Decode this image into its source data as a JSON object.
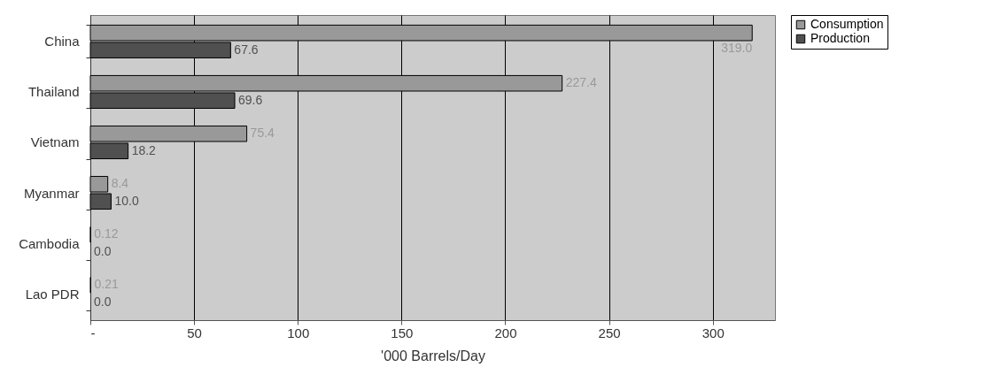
{
  "chart_data": {
    "type": "bar",
    "orientation": "horizontal",
    "xlabel": "'000 Barrels/Day",
    "categories": [
      "China",
      "Thailand",
      "Vietnam",
      "Myanmar",
      "Cambodia",
      "Lao PDR"
    ],
    "series": [
      {
        "name": "Consumption",
        "color": "#999999",
        "values": [
          319.0,
          227.4,
          75.4,
          8.4,
          0.12,
          0.21
        ],
        "value_labels": [
          "319.0",
          "227.4",
          "75.4",
          "8.4",
          "0.12",
          "0.21"
        ]
      },
      {
        "name": "Production",
        "color": "#505050",
        "values": [
          67.6,
          69.6,
          18.2,
          10.0,
          0.0,
          0.0
        ],
        "value_labels": [
          "67.6",
          "69.6",
          "18.2",
          "10.0",
          "0.0",
          "0.0"
        ]
      }
    ],
    "xlim": [
      0,
      330
    ],
    "xticks": [
      {
        "value": 0,
        "label": "-"
      },
      50,
      100,
      150,
      200,
      250,
      300
    ],
    "grid": "x",
    "legend": "right"
  }
}
